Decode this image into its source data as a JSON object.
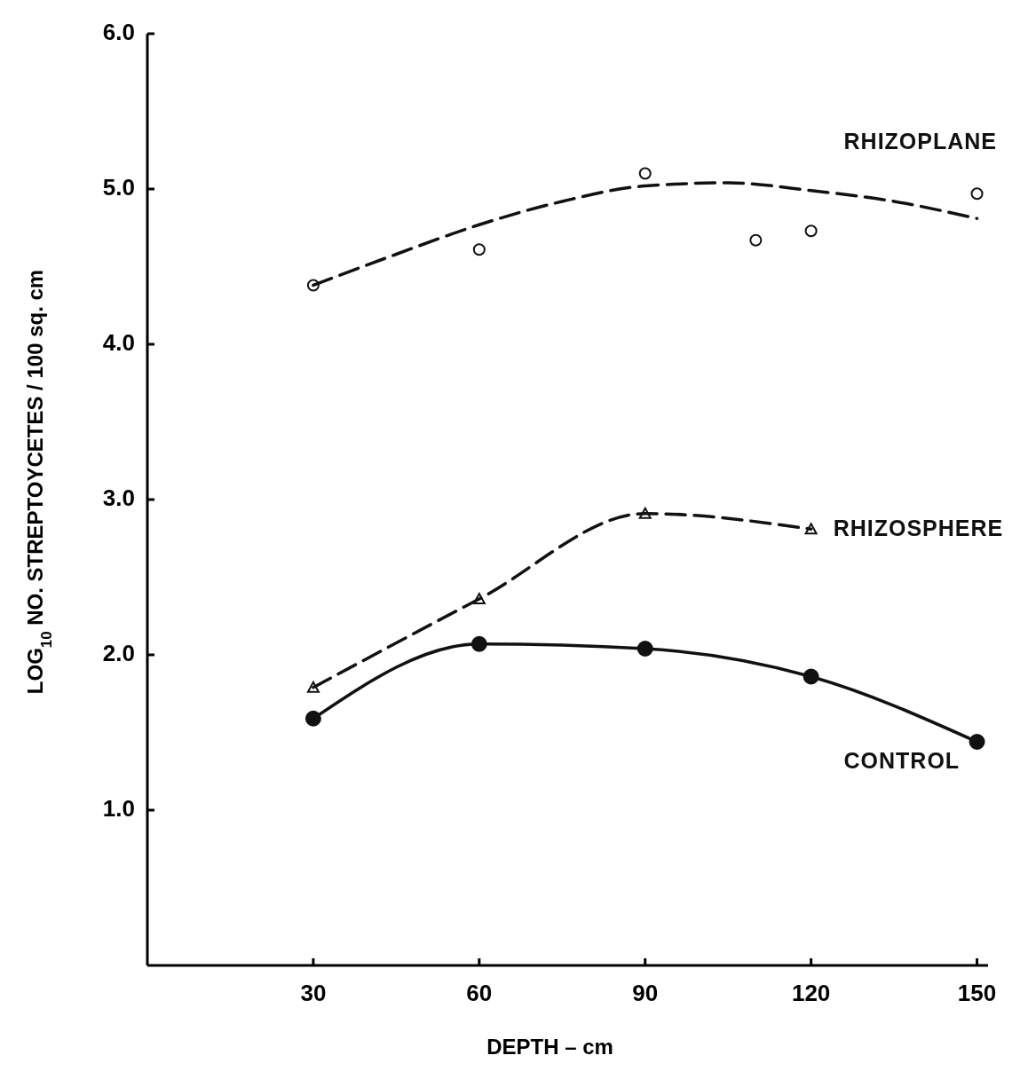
{
  "chart_data": {
    "type": "scatter",
    "xlabel": "DEPTH – cm",
    "ylabel": "LOG$_{10}$ NO. STREPTOYCETES / 100 sq. cm",
    "xlim": [
      0,
      152
    ],
    "ylim": [
      0,
      6
    ],
    "xticks": [
      30,
      60,
      90,
      120,
      150
    ],
    "yticks": [
      {
        "value": 1,
        "label": "1.0"
      },
      {
        "value": 2,
        "label": "2.0"
      },
      {
        "value": 3,
        "label": "3.0"
      },
      {
        "value": 4,
        "label": "4.0"
      },
      {
        "value": 5,
        "label": "5.0"
      },
      {
        "value": 6,
        "label": "6.0"
      }
    ],
    "grid": false,
    "legend": false,
    "series": [
      {
        "type": "line",
        "line_style": "dashed",
        "marker": "none",
        "color": "#111111",
        "x": [
          30,
          45,
          60,
          75,
          90,
          105,
          120,
          135,
          150
        ],
        "values": [
          4.38,
          4.58,
          4.77,
          4.92,
          5.02,
          5.04,
          4.99,
          4.92,
          4.81
        ]
      },
      {
        "name": "RHIZOPLANE",
        "marker": "circle",
        "color": "#111111",
        "x": [
          30,
          60,
          90,
          110,
          120,
          150
        ],
        "values": [
          4.38,
          4.61,
          5.1,
          4.67,
          4.73,
          4.97
        ]
      },
      {
        "type": "line",
        "name": "RHIZOSPHERE",
        "line_style": "dashed",
        "marker": "triangle",
        "color": "#111111",
        "x": [
          30,
          60,
          90,
          120
        ],
        "values": [
          1.79,
          2.36,
          2.91,
          2.81
        ]
      },
      {
        "type": "line",
        "name": "CONTROL",
        "line_style": "solid",
        "marker": "circle",
        "color": "#111111",
        "x": [
          30,
          60,
          90,
          120,
          150
        ],
        "values": [
          1.59,
          2.07,
          2.04,
          1.86,
          1.44
        ]
      }
    ]
  }
}
